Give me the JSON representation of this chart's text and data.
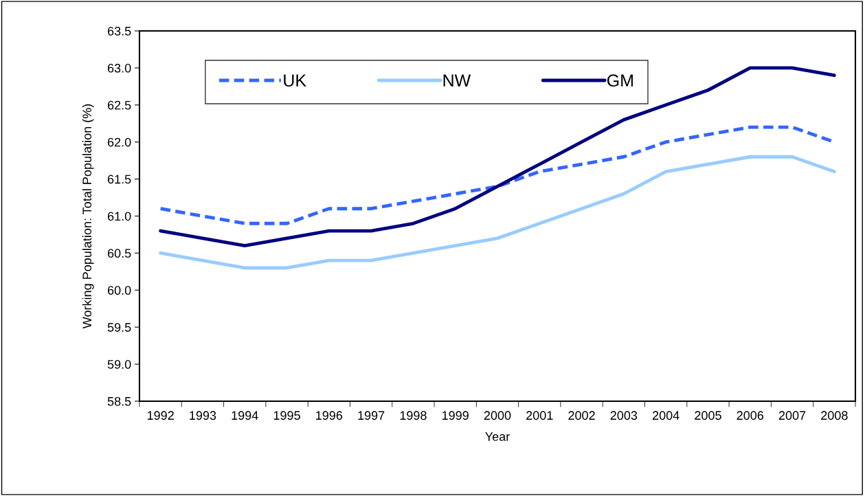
{
  "chart_data": {
    "type": "line",
    "xlabel": "Year",
    "ylabel": "Working Population: Total Population (%)",
    "categories": [
      "1992",
      "1993",
      "1994",
      "1995",
      "1996",
      "1997",
      "1998",
      "1999",
      "2000",
      "2001",
      "2002",
      "2003",
      "2004",
      "2005",
      "2006",
      "2007",
      "2008"
    ],
    "series": [
      {
        "name": "UK",
        "color": "#3366ff",
        "line_style": "dashed",
        "values": [
          61.1,
          61.0,
          60.9,
          60.9,
          61.1,
          61.1,
          61.2,
          61.3,
          61.4,
          61.6,
          61.7,
          61.8,
          62.0,
          62.1,
          62.2,
          62.2,
          62.0
        ]
      },
      {
        "name": "NW",
        "color": "#99ccff",
        "line_style": "solid",
        "values": [
          60.5,
          60.4,
          60.3,
          60.3,
          60.4,
          60.4,
          60.5,
          60.6,
          60.7,
          60.9,
          61.1,
          61.3,
          61.6,
          61.7,
          61.8,
          61.8,
          61.6
        ]
      },
      {
        "name": "GM",
        "color": "#000080",
        "line_style": "solid",
        "values": [
          60.8,
          60.7,
          60.6,
          60.7,
          60.8,
          60.8,
          60.9,
          61.1,
          61.4,
          61.7,
          62.0,
          62.3,
          62.5,
          62.7,
          63.0,
          63.0,
          62.9
        ]
      }
    ],
    "ylim": [
      58.5,
      63.5
    ],
    "yticks": [
      58.5,
      {
        "value": 59,
        "label": "59.0"
      },
      59.5,
      {
        "value": 60,
        "label": "60.0"
      },
      60.5,
      {
        "value": 61,
        "label": "61.0"
      },
      61.5,
      {
        "value": 62,
        "label": "62.0"
      },
      62.5,
      {
        "value": 63,
        "label": "63.0"
      },
      63.5
    ],
    "grid": false,
    "legend": "top",
    "marker": "none"
  }
}
